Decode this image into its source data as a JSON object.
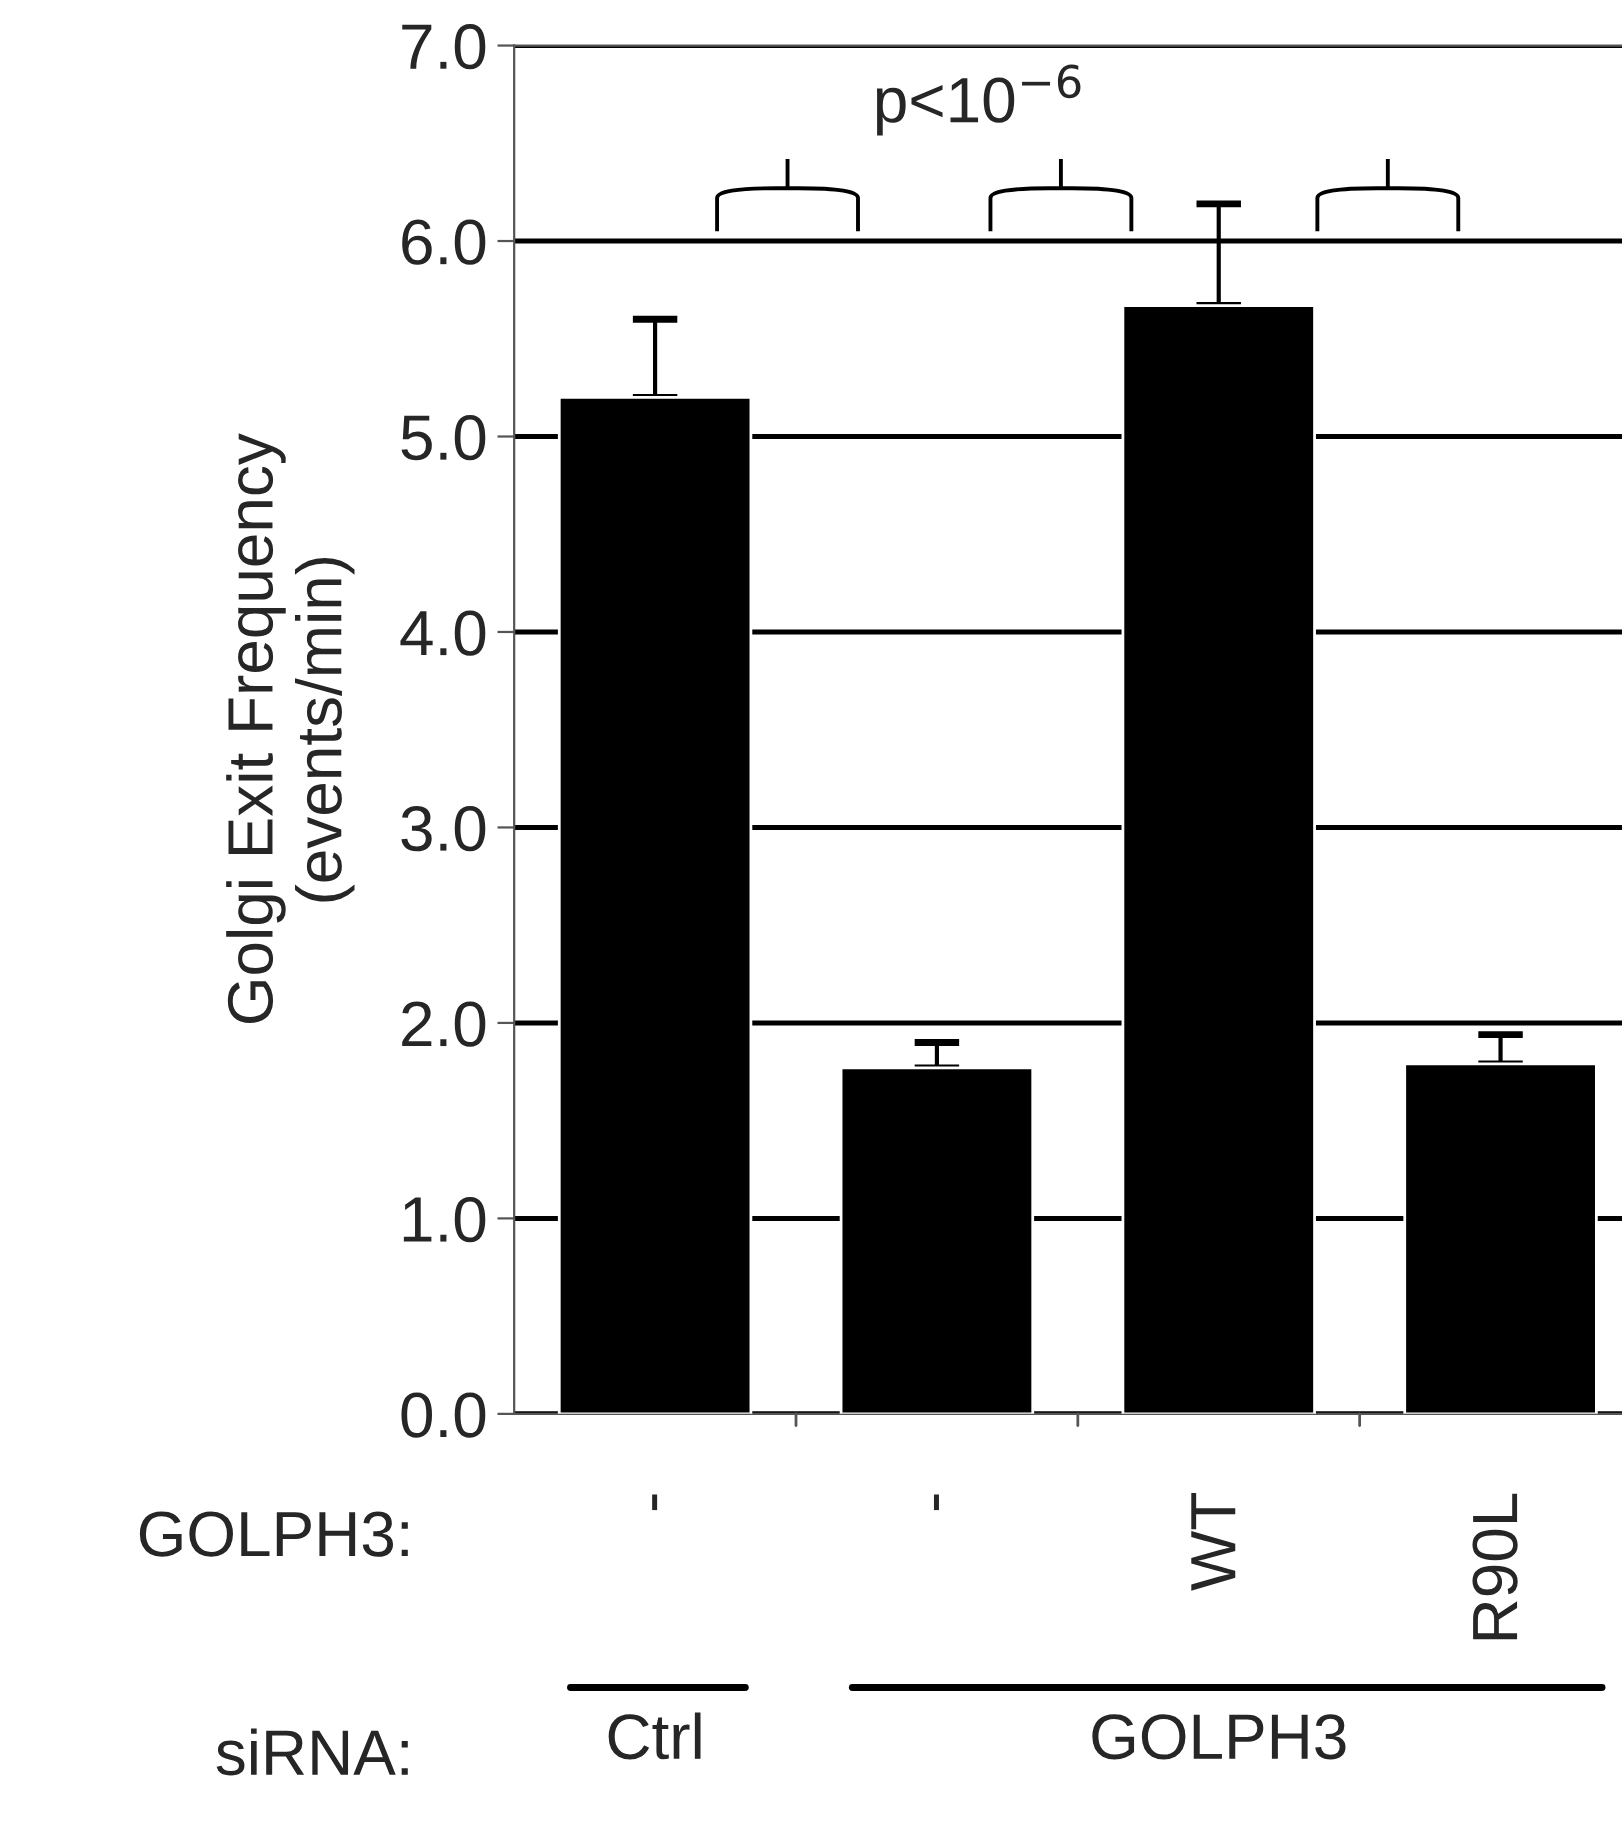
{
  "chart_data": {
    "type": "bar",
    "ylabel": "Golgi Exit Frequency\n(events/min)",
    "categories": [
      "-",
      "-",
      "WT",
      "R90L"
    ],
    "values": [
      5.2,
      1.77,
      5.67,
      1.79
    ],
    "errors": [
      [
        5.2,
        5.6
      ],
      [
        1.77,
        1.9
      ],
      [
        5.67,
        6.19
      ],
      [
        1.79,
        1.94
      ]
    ],
    "color": "#000000",
    "ylim": [
      0,
      7
    ],
    "yticks": [
      {
        "value": 0,
        "label": "0.0"
      },
      {
        "value": 1,
        "label": "1.0"
      },
      {
        "value": 2,
        "label": "2.0"
      },
      {
        "value": 3,
        "label": "3.0"
      },
      {
        "value": 4,
        "label": "4.0"
      },
      {
        "value": 5,
        "label": "5.0"
      },
      {
        "value": 6,
        "label": "6.0"
      },
      {
        "value": 7,
        "label": "7.0"
      }
    ],
    "grid": "y",
    "annotations": [
      "p<10$^{−6}$",
      "GOLPH3:",
      "siRNA:",
      "Ctrl",
      "GOLPH3"
    ]
  }
}
